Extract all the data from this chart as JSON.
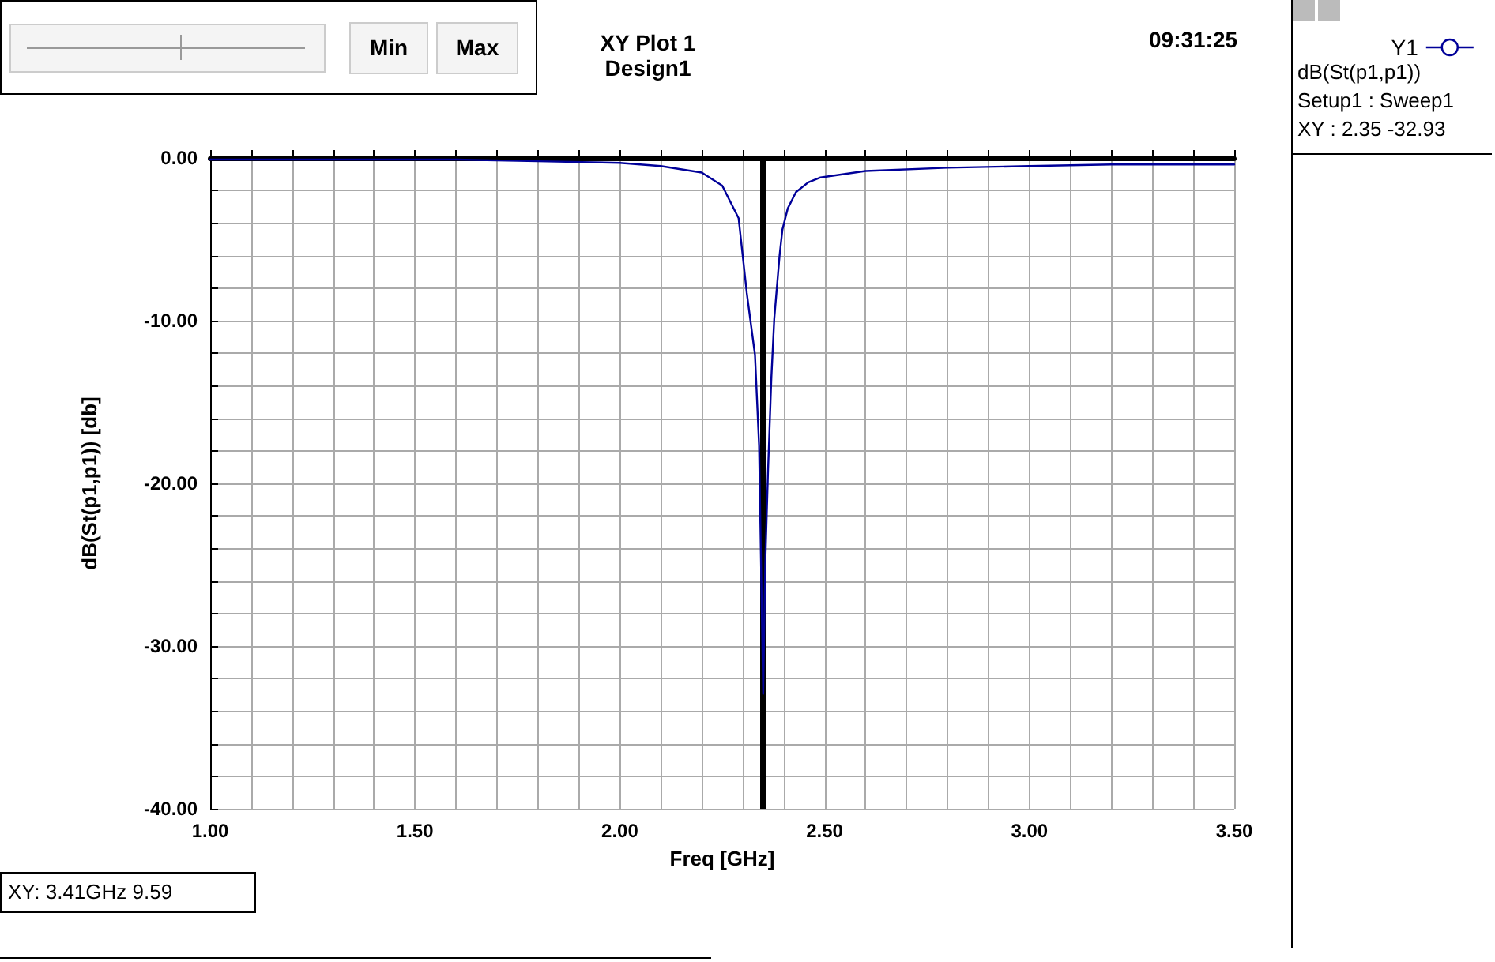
{
  "chart_data": {
    "type": "line",
    "title": "XY Plot 1",
    "subtitle": "Design1",
    "xlabel": "Freq [GHz]",
    "ylabel": "dB(St(p1,p1)) [db]",
    "annotations": [
      "09:31:25",
      "Min",
      "Max",
      "dB(St(p1,p1))",
      "Setup1 : Sweep1",
      "XY : 2.35 -32.93",
      "XY: 3.41GHz 9.59"
    ],
    "series": [
      {
        "name": "Y1",
        "color": "#000099",
        "x": [
          1.0,
          1.2,
          1.4,
          1.6,
          1.8,
          2.0,
          2.1,
          2.2,
          2.25,
          2.29,
          2.31,
          2.33,
          2.34,
          2.35,
          2.355,
          2.362,
          2.37,
          2.377,
          2.39,
          2.397,
          2.41,
          2.43,
          2.46,
          2.49,
          2.6,
          2.8,
          3.0,
          3.2,
          3.5
        ],
        "values": [
          -0.1,
          -0.1,
          -0.1,
          -0.1,
          -0.2,
          -0.3,
          -0.5,
          -0.9,
          -1.7,
          -3.7,
          -8.3,
          -12.1,
          -17.7,
          -32.93,
          -25.0,
          -19.1,
          -13.5,
          -9.9,
          -6.0,
          -4.4,
          -3.1,
          -2.1,
          -1.5,
          -1.2,
          -0.8,
          -0.6,
          -0.5,
          -0.4,
          -0.4
        ]
      }
    ],
    "xlim": [
      1.0,
      3.5
    ],
    "xticks": [
      {
        "value": 1.0,
        "label": "1.00"
      },
      {
        "value": 1.1,
        "label": null
      },
      {
        "value": 1.2,
        "label": null
      },
      {
        "value": 1.3,
        "label": null
      },
      {
        "value": 1.4,
        "label": null
      },
      {
        "value": 1.5,
        "label": "1.50"
      },
      {
        "value": 1.6,
        "label": null
      },
      {
        "value": 1.7,
        "label": null
      },
      {
        "value": 1.8,
        "label": null
      },
      {
        "value": 1.9,
        "label": null
      },
      {
        "value": 2.0,
        "label": "2.00"
      },
      {
        "value": 2.1,
        "label": null
      },
      {
        "value": 2.2,
        "label": null
      },
      {
        "value": 2.3,
        "label": null
      },
      {
        "value": 2.4,
        "label": null
      },
      {
        "value": 2.5,
        "label": "2.50"
      },
      {
        "value": 2.6,
        "label": null
      },
      {
        "value": 2.7,
        "label": null
      },
      {
        "value": 2.8,
        "label": null
      },
      {
        "value": 2.9,
        "label": null
      },
      {
        "value": 3.0,
        "label": "3.00"
      },
      {
        "value": 3.1,
        "label": null
      },
      {
        "value": 3.2,
        "label": null
      },
      {
        "value": 3.3,
        "label": null
      },
      {
        "value": 3.4,
        "label": null
      },
      {
        "value": 3.5,
        "label": "3.50"
      }
    ],
    "ylim": [
      -40,
      0
    ],
    "yticks": [
      {
        "value": -40,
        "label": "-40.00"
      },
      {
        "value": -38,
        "label": null
      },
      {
        "value": -36,
        "label": null
      },
      {
        "value": -34,
        "label": null
      },
      {
        "value": -32,
        "label": null
      },
      {
        "value": -30,
        "label": "-30.00"
      },
      {
        "value": -28,
        "label": null
      },
      {
        "value": -26,
        "label": null
      },
      {
        "value": -24,
        "label": null
      },
      {
        "value": -22,
        "label": null
      },
      {
        "value": -20,
        "label": "-20.00"
      },
      {
        "value": -18,
        "label": null
      },
      {
        "value": -16,
        "label": null
      },
      {
        "value": -14,
        "label": null
      },
      {
        "value": -12,
        "label": null
      },
      {
        "value": -10,
        "label": "-10.00"
      },
      {
        "value": -8,
        "label": null
      },
      {
        "value": -6,
        "label": null
      },
      {
        "value": -4,
        "label": null
      },
      {
        "value": -2,
        "label": null
      },
      {
        "value": 0,
        "label": "0.00"
      }
    ],
    "ref_lines": [
      {
        "axis": "x",
        "value": 2.35,
        "color": "#000000"
      }
    ],
    "grid": true,
    "legend": "right",
    "marker": "none",
    "line_style": "solid"
  }
}
